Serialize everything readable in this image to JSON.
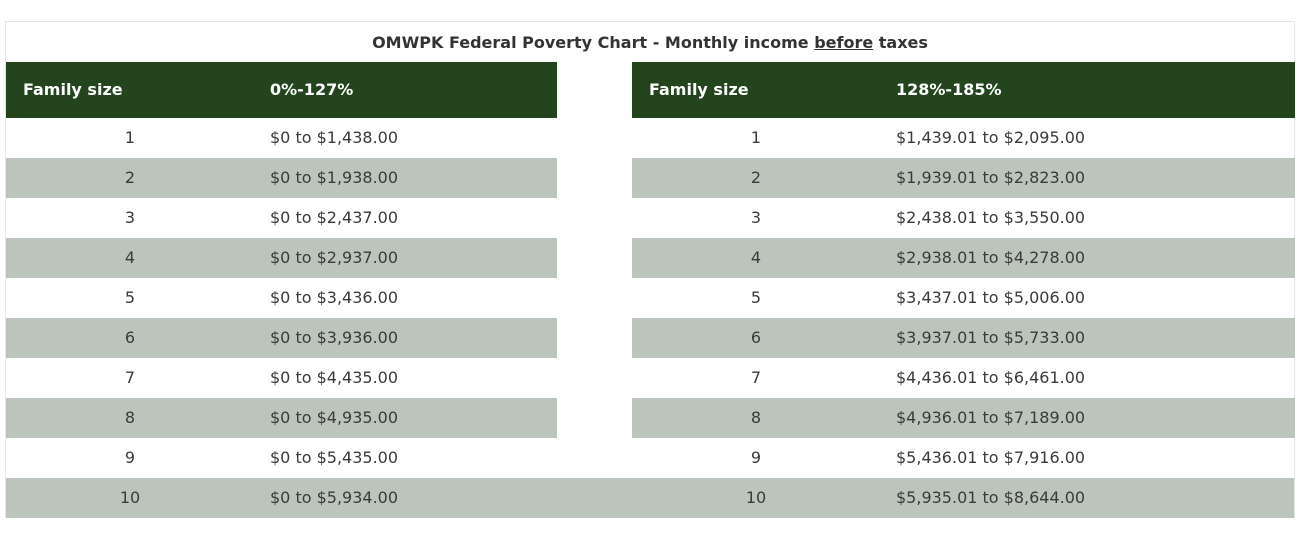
{
  "table": {
    "title_prefix": "OMWPK Federal Poverty Chart - Monthly income ",
    "title_emphasis": "before",
    "title_suffix": " taxes",
    "left": {
      "col_family": "Family size",
      "col_range": "0%-127%",
      "rows": [
        {
          "size": "1",
          "range": "$0 to $1,438.00"
        },
        {
          "size": "2",
          "range": "$0 to $1,938.00"
        },
        {
          "size": "3",
          "range": "$0 to $2,437.00"
        },
        {
          "size": "4",
          "range": "$0 to $2,937.00"
        },
        {
          "size": "5",
          "range": "$0 to $3,436.00"
        },
        {
          "size": "6",
          "range": "$0 to $3,936.00"
        },
        {
          "size": "7",
          "range": "$0 to $4,435.00"
        },
        {
          "size": "8",
          "range": "$0 to $4,935.00"
        },
        {
          "size": "9",
          "range": "$0 to $5,435.00"
        },
        {
          "size": "10",
          "range": "$0 to $5,934.00"
        }
      ]
    },
    "right": {
      "col_family": "Family size",
      "col_range": "128%-185%",
      "rows": [
        {
          "size": "1",
          "range": "$1,439.01 to $2,095.00"
        },
        {
          "size": "2",
          "range": "$1,939.01 to $2,823.00"
        },
        {
          "size": "3",
          "range": "$2,438.01 to $3,550.00"
        },
        {
          "size": "4",
          "range": "$2,938.01 to $4,278.00"
        },
        {
          "size": "5",
          "range": "$3,437.01 to $5,006.00"
        },
        {
          "size": "6",
          "range": "$3,937.01 to $5,733.00"
        },
        {
          "size": "7",
          "range": "$4,436.01 to $6,461.00"
        },
        {
          "size": "8",
          "range": "$4,936.01 to $7,189.00"
        },
        {
          "size": "9",
          "range": "$5,436.01 to $7,916.00"
        },
        {
          "size": "10",
          "range": "$5,935.01 to $8,644.00"
        }
      ]
    },
    "colors": {
      "header_bg": "#24441e",
      "stripe_bg": "#bcc5bb"
    }
  }
}
